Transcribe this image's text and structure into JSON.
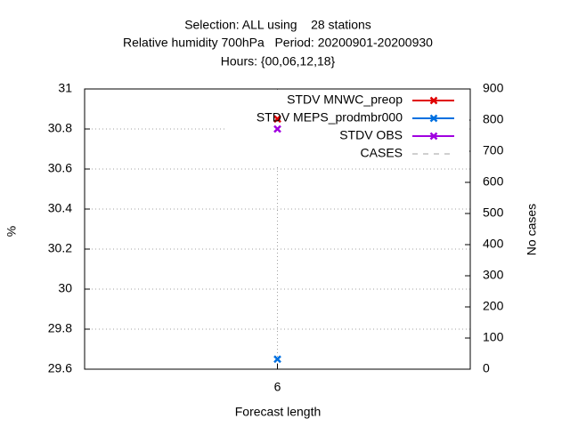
{
  "chart_data": {
    "type": "line",
    "title": [
      "Selection: ALL using    28 stations",
      "Relative humidity 700hPa   Period: 20200901-20200930",
      "Hours: {00,06,12,18}"
    ],
    "xlabel": "Forecast length",
    "ylabel": "%",
    "y2label": "No cases",
    "x": [
      6
    ],
    "xlim": [
      5,
      7
    ],
    "xticks": [
      6
    ],
    "ylim": [
      29.6,
      31
    ],
    "yticks": [
      29.6,
      29.8,
      30,
      30.2,
      30.4,
      30.6,
      30.8,
      31
    ],
    "y2lim": [
      0,
      900
    ],
    "y2ticks": [
      0,
      100,
      200,
      300,
      400,
      500,
      600,
      700,
      800,
      900
    ],
    "grid": true,
    "series": [
      {
        "name": "STDV MNWC_preop",
        "color": "#e00000",
        "values": [
          30.85
        ]
      },
      {
        "name": "STDV MEPS_prodmbr000",
        "color": "#0070e0",
        "values": [
          29.65
        ]
      },
      {
        "name": "STDV OBS",
        "color": "#a000e0",
        "values": [
          30.8
        ]
      },
      {
        "name": "CASES",
        "color": "#a0a0a0",
        "axis": "y2",
        "dashed": true,
        "values": [
          null
        ]
      }
    ]
  }
}
